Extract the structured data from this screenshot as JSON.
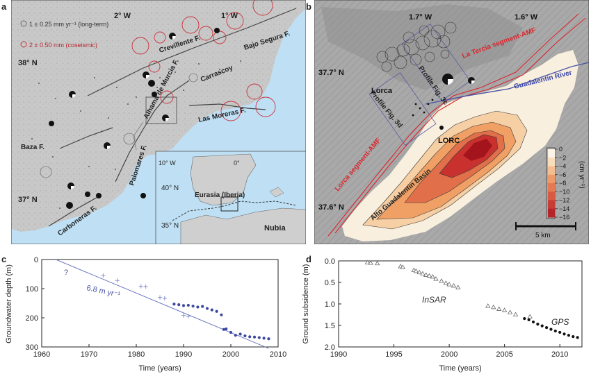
{
  "panel_a": {
    "label": "a",
    "legend_long_term": "1 ± 0.25 mm yr⁻¹ (long-term)",
    "legend_coseismic": "2 ± 0.50 mm (coseismic)",
    "lon_2w": "2° W",
    "lon_1w": "1° W",
    "lat_38n": "38° N",
    "lat_37n": "37° N",
    "faults": [
      "Crevillente F.",
      "Bajo Segura F.",
      "Carrascoy",
      "Alhama de Murcia F.",
      "Las Moreras F.",
      "Palomares F.",
      "Baza F.",
      "Carboneras F."
    ],
    "inset_lon_10w": "10° W",
    "inset_lon_0": "0°",
    "inset_lat_40n": "40° N",
    "inset_lat_35n": "35° N",
    "inset_eurasia": "Eurasia (Iberia)",
    "inset_nubia": "Nubia"
  },
  "panel_b": {
    "label": "b",
    "lon_17w": "1.7° W",
    "lon_16w": "1.6° W",
    "lat_377n": "37.7° N",
    "lat_376n": "37.6° N",
    "la_tercia": "La Tercia segment-AMF",
    "guadalentin_river": "Guadalentin River",
    "profile_3c": "Profile Fig. 3c",
    "profile_3d": "Profile Fig. 3d",
    "lorca": "Lorca",
    "lorc": "LORC",
    "lorca_segment": "Lorca segment-AMF",
    "basin": "Alto Guadalentin Basin",
    "scale_bar": "5 km",
    "colorbar_ticks": [
      "0",
      "−2",
      "−4",
      "−6",
      "−8",
      "−10",
      "−12",
      "−14",
      "−16"
    ],
    "colorbar_unit": "(cm yr⁻¹)",
    "colors": {
      "low": "#fbf3e6",
      "mid": "#f0a064",
      "high": "#b0141c"
    }
  },
  "panel_c": {
    "label": "c",
    "xlabel": "Time (years)",
    "ylabel": "Groundwater depth (m)",
    "rate_label": "6.8 m yr⁻¹",
    "question": "?",
    "xticks": [
      "1960",
      "1970",
      "1980",
      "1990",
      "2000",
      "2010"
    ],
    "yticks": [
      "0",
      "100",
      "200",
      "300"
    ]
  },
  "panel_d": {
    "label": "d",
    "xlabel": "Time (years)",
    "ylabel": "Ground subsidence (m)",
    "insar_label": "InSAR",
    "gps_label": "GPS",
    "xticks": [
      "1990",
      "1995",
      "2000",
      "2005",
      "2010"
    ],
    "yticks": [
      "0.0",
      "0.5",
      "1.0",
      "1.5",
      "2.0"
    ]
  },
  "chart_data": [
    {
      "type": "scatter",
      "panel": "c",
      "xlabel": "Time (years)",
      "ylabel": "Groundwater depth (m)",
      "xlim": [
        1960,
        2010
      ],
      "ylim": [
        0,
        300
      ],
      "y_inverted": true,
      "annotation": "6.8 m yr⁻¹",
      "trend_line": [
        [
          1963,
          0
        ],
        [
          2008,
          305
        ]
      ],
      "series": [
        {
          "marker": "cross",
          "points": [
            [
              1973,
              55
            ],
            [
              1976,
              72
            ],
            [
              1981,
              92
            ],
            [
              1982,
              93
            ],
            [
              1985,
              130
            ],
            [
              1986,
              133
            ],
            [
              1990,
              192
            ],
            [
              1991,
              195
            ]
          ]
        },
        {
          "marker": "dot",
          "points": [
            [
              1988,
              153
            ],
            [
              1989,
              155
            ],
            [
              1990,
              158
            ],
            [
              1991,
              157
            ],
            [
              1992,
              160
            ],
            [
              1993,
              163
            ],
            [
              1994,
              161
            ],
            [
              1995,
              168
            ],
            [
              1996,
              173
            ],
            [
              1997,
              178
            ],
            [
              1998,
              190
            ],
            [
              1998.5,
              240
            ],
            [
              1999,
              238
            ],
            [
              2000,
              250
            ],
            [
              2001,
              260
            ],
            [
              2002,
              256
            ],
            [
              2003,
              262
            ],
            [
              2004,
              265
            ],
            [
              2005,
              266
            ],
            [
              2006,
              268
            ],
            [
              2007,
              270
            ],
            [
              2008,
              272
            ]
          ]
        }
      ]
    },
    {
      "type": "scatter",
      "panel": "d",
      "xlabel": "Time (years)",
      "ylabel": "Ground subsidence (m)",
      "xlim": [
        1990,
        2012
      ],
      "ylim": [
        0.0,
        2.0
      ],
      "y_inverted": true,
      "series": [
        {
          "name": "InSAR",
          "marker": "triangle",
          "points": [
            [
              1992.6,
              0.04
            ],
            [
              1992.9,
              0.05
            ],
            [
              1993.5,
              0.06
            ],
            [
              1995.6,
              0.13
            ],
            [
              1995.8,
              0.15
            ],
            [
              1996.8,
              0.22
            ],
            [
              1997.0,
              0.24
            ],
            [
              1997.3,
              0.27
            ],
            [
              1997.6,
              0.3
            ],
            [
              1997.9,
              0.33
            ],
            [
              1998.2,
              0.35
            ],
            [
              1998.5,
              0.37
            ],
            [
              1998.8,
              0.42
            ],
            [
              1999.3,
              0.47
            ],
            [
              1999.7,
              0.52
            ],
            [
              2000.0,
              0.55
            ],
            [
              2000.4,
              0.58
            ],
            [
              2000.8,
              0.62
            ],
            [
              2003.5,
              1.05
            ],
            [
              2004.0,
              1.08
            ],
            [
              2004.5,
              1.12
            ],
            [
              2005.0,
              1.15
            ],
            [
              2005.5,
              1.2
            ],
            [
              2006.0,
              1.25
            ],
            [
              2007.3,
              1.3
            ]
          ]
        },
        {
          "name": "GPS",
          "marker": "dot",
          "points": [
            [
              2006.8,
              1.34
            ],
            [
              2007.2,
              1.37
            ],
            [
              2007.6,
              1.42
            ],
            [
              2008.0,
              1.47
            ],
            [
              2008.4,
              1.51
            ],
            [
              2008.8,
              1.55
            ],
            [
              2009.2,
              1.59
            ],
            [
              2009.6,
              1.63
            ],
            [
              2010.0,
              1.66
            ],
            [
              2010.4,
              1.7
            ],
            [
              2010.8,
              1.73
            ],
            [
              2011.2,
              1.76
            ],
            [
              2011.6,
              1.78
            ]
          ]
        }
      ]
    }
  ]
}
